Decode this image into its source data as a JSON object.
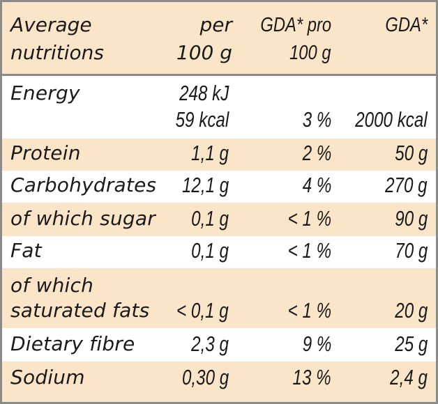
{
  "header": {
    "col1_line1": "Average",
    "col1_line2": "nutritions",
    "col2_line1": "per",
    "col2_line2": "100 g",
    "col3_line1": "GDA* pro",
    "col3_line2": "100 g",
    "col4_line1": "GDA*"
  },
  "energy": {
    "name": "Energy",
    "value_kj": "248 kJ",
    "value_kcal": "59 kcal",
    "gda_percent": "3 %",
    "gda": "2000 kcal"
  },
  "rows": [
    {
      "name": "Protein",
      "value": "1,1 g",
      "gda_percent": "2 %",
      "gda": "50 g"
    },
    {
      "name": "Carbohydrates",
      "value": "12,1 g",
      "gda_percent": "4 %",
      "gda": "270 g"
    },
    {
      "name": "of which sugar",
      "value": "0,1 g",
      "gda_percent": "< 1 %",
      "gda": "90 g"
    },
    {
      "name": "Fat",
      "value": "0,1 g",
      "gda_percent": "< 1 %",
      "gda": "70 g"
    }
  ],
  "saturated": {
    "name_line1": "of which",
    "name_line2": "saturated fats",
    "value": "< 0,1 g",
    "gda_percent": "< 1 %",
    "gda": "20 g"
  },
  "rows_after": [
    {
      "name": "Dietary fibre",
      "value": "2,3 g",
      "gda_percent": "9 %",
      "gda": "25 g"
    },
    {
      "name": "Sodium",
      "value": "0,30 g",
      "gda_percent": "13 %",
      "gda": "2,4 g"
    }
  ],
  "colors": {
    "tint": "#fbe5c8",
    "border": "#8a8a8a",
    "text": "#1a1a1a"
  }
}
